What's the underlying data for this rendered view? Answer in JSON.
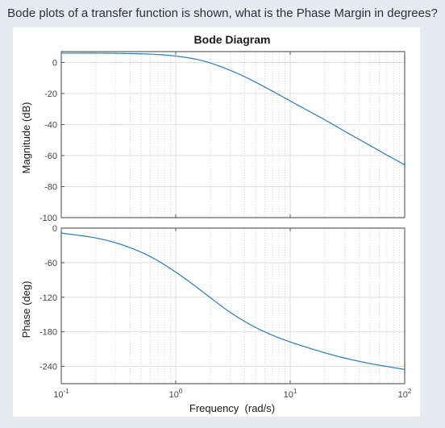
{
  "question": "Bode plots of a transfer function is shown, what is the Phase Margin in degrees?",
  "chart_data": {
    "type": "line",
    "title": "Bode Diagram",
    "xlabel": "Frequency  (rad/s)",
    "x_scale": "log",
    "xlim": [
      0.1,
      100
    ],
    "x_ticks": [
      {
        "value": 0.1,
        "base": "10",
        "exp": "-1"
      },
      {
        "value": 1,
        "base": "10",
        "exp": "0"
      },
      {
        "value": 10,
        "base": "10",
        "exp": "1"
      },
      {
        "value": 100,
        "base": "10",
        "exp": "2"
      }
    ],
    "grid": true,
    "line_color": "#2b7bba",
    "panels": [
      {
        "name": "magnitude",
        "ylabel": "Magnitude (dB)",
        "ylim": [
          -100,
          7
        ],
        "y_ticks": [
          0,
          -20,
          -40,
          -60,
          -80,
          -100
        ],
        "x": [
          0.1,
          0.3,
          0.7,
          1,
          1.5,
          2,
          2.5,
          3,
          4,
          5,
          7,
          10,
          15,
          20,
          30,
          50,
          70,
          100
        ],
        "y": [
          6,
          5.9,
          5.1,
          4.1,
          2.1,
          -0.3,
          -2.8,
          -5.1,
          -9.2,
          -12.8,
          -18.5,
          -24.8,
          -31.9,
          -36.9,
          -44.4,
          -53.6,
          -59.7,
          -66.0
        ]
      },
      {
        "name": "phase",
        "ylabel": "Phase (deg)",
        "ylim": [
          -270,
          0
        ],
        "y_ticks": [
          0,
          -60,
          -120,
          -180,
          -240
        ],
        "x": [
          0.1,
          0.2,
          0.3,
          0.5,
          0.7,
          1,
          1.5,
          2,
          2.5,
          3,
          4,
          5,
          7,
          10,
          15,
          20,
          30,
          50,
          70,
          100
        ],
        "y": [
          -8.6,
          -17.1,
          -25.6,
          -41.9,
          -56.8,
          -76.4,
          -101.5,
          -120.5,
          -135.2,
          -146.4,
          -162.0,
          -172.6,
          -186.0,
          -197.6,
          -208.9,
          -216.3,
          -225.6,
          -235.1,
          -240.2,
          -245.4
        ]
      }
    ]
  }
}
